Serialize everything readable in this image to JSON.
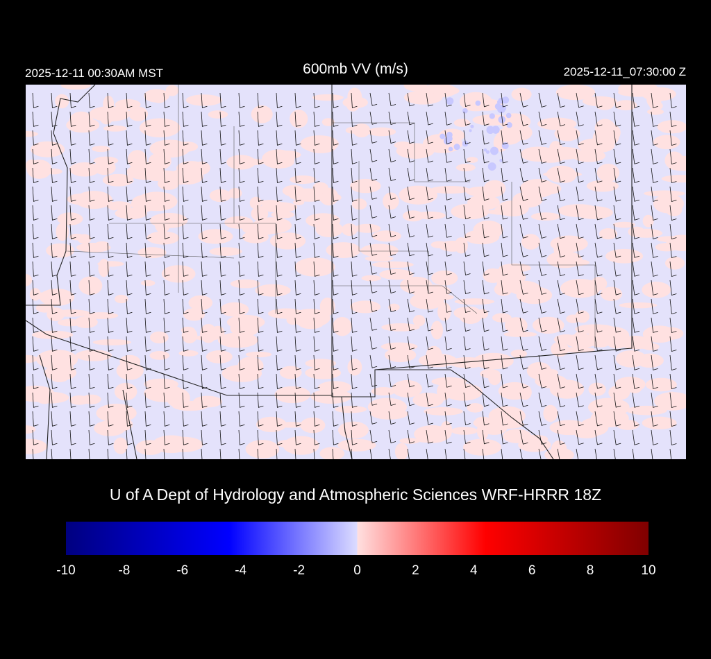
{
  "header": {
    "local_time": "2025-12-11 00:30AM MST",
    "title": "600mb VV (m/s)",
    "utc_time": "2025-12-11_07:30:00 Z"
  },
  "credit": "U of A Dept of Hydrology and Atmospheric Sciences WRF-HRRR 18Z",
  "colorbar": {
    "min": -10,
    "max": 10,
    "ticks": [
      "-10",
      "-8",
      "-6",
      "-4",
      "-2",
      "0",
      "2",
      "4",
      "6",
      "8",
      "10"
    ],
    "colors": {
      "min": "#000080",
      "neg": "#0000ff",
      "zero_neg": "#dcdcff",
      "zero_pos": "#ffe0e0",
      "pos": "#ff0000",
      "max": "#800000"
    }
  },
  "map": {
    "field_colors": {
      "weak_pos": "#ffe1e1",
      "weak_neg": "#e1e1ff",
      "land_edge": "#c8c8c8"
    }
  }
}
